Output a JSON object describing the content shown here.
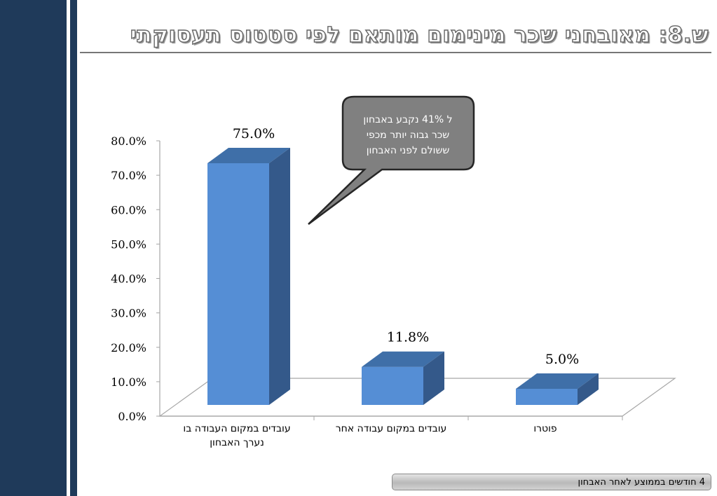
{
  "slide": {
    "title": "ש.8: מאובחני שכר מינימום מותאם לפי סטטוס תעסוקתי",
    "footer_note": "4 חודשים בממוצע לאחר האבחון"
  },
  "callout": {
    "lines": [
      "ל 41% נקבע  באבחון",
      "שכר גבוה יותר מכפי",
      "ששולם לפני האבחון"
    ]
  },
  "colors": {
    "bar_front": "#558ed5",
    "bar_top": "#3f6fa8",
    "bar_side": "#34598a",
    "callout_fill": "#808080",
    "side_band": "#1f3a5a"
  },
  "chart_data": {
    "type": "bar",
    "style": "3d",
    "categories": [
      [
        "עובדים במקום העבודה בו",
        "נערך האבחון"
      ],
      [
        "עובדים במקום עבודה אחר"
      ],
      [
        "פוטרו"
      ]
    ],
    "values": [
      75.0,
      11.8,
      5.0
    ],
    "value_labels": [
      "75.0%",
      "11.8%",
      "5.0%"
    ],
    "ylim": [
      0,
      80
    ],
    "yticks": [
      0,
      10,
      20,
      30,
      40,
      50,
      60,
      70,
      80
    ],
    "ytick_labels": [
      "0.0%",
      "10.0%",
      "20.0%",
      "30.0%",
      "40.0%",
      "50.0%",
      "60.0%",
      "70.0%",
      "80.0%"
    ],
    "gridlines": false,
    "legend": "none"
  }
}
